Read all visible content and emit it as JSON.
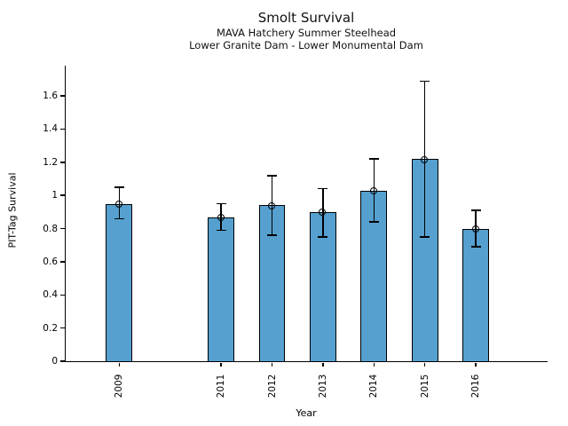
{
  "chart_data": {
    "type": "bar",
    "title": "Smolt Survival",
    "subtitles": [
      "MAVA Hatchery Summer Steelhead",
      "Lower Granite Dam - Lower Monumental Dam"
    ],
    "xlabel": "Year",
    "ylabel": "PIT-Tag Survival",
    "x": [
      2009,
      2011,
      2012,
      2013,
      2014,
      2015,
      2016
    ],
    "xtick_labels": [
      "2009",
      "2011",
      "2012",
      "2013",
      "2014",
      "2015",
      "2016"
    ],
    "values": [
      0.95,
      0.87,
      0.94,
      0.9,
      1.03,
      1.22,
      0.8
    ],
    "error_low": [
      0.86,
      0.79,
      0.76,
      0.75,
      0.84,
      0.75,
      0.69
    ],
    "error_high": [
      1.05,
      0.95,
      1.12,
      1.04,
      1.22,
      1.69,
      0.91
    ],
    "xlim": [
      2007.95,
      2017.4
    ],
    "ylim": [
      0,
      1.78
    ],
    "ytick_values": [
      0,
      0.2,
      0.4,
      0.6,
      0.8,
      1,
      1.2,
      1.4,
      1.6
    ],
    "ytick_labels": [
      "0",
      "0.2",
      "0.4",
      "0.6",
      "0.8",
      "1",
      "1.2",
      "1.4",
      "1.6"
    ],
    "bar_width_years": 0.52,
    "grid": false,
    "legend": "none",
    "colors": {
      "bar_fill": "#56A0D0",
      "bar_edge": "#000000",
      "error_bar": "#000000",
      "text": "#000000",
      "background": "#ffffff"
    }
  }
}
